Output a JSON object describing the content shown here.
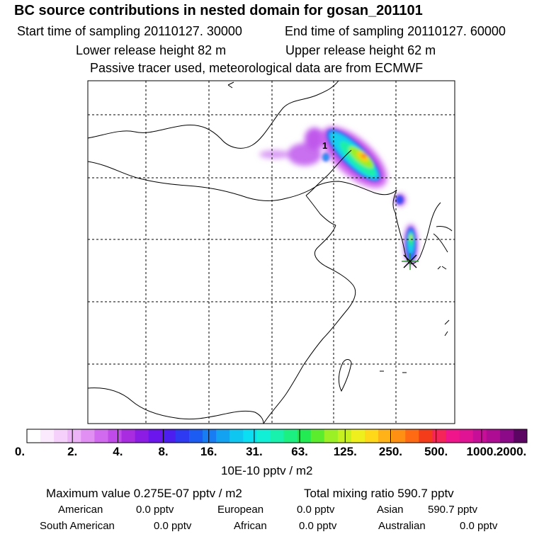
{
  "header": {
    "title": "BC  source contributions in nested domain for gosan_201101",
    "start_time": "Start time of sampling 20110127. 30000",
    "end_time": "End time of sampling 20110127. 60000",
    "lower_height": "Lower release height   82 m",
    "upper_height": "Upper release height   62 m",
    "tracer_note": "Passive tracer used, meteorological data are from ECMWF"
  },
  "map": {
    "marker_label": "1",
    "receptor_marker": "star-marker"
  },
  "colorbar": {
    "colors": [
      "#ffffff",
      "#fbe9fd",
      "#f5d0fa",
      "#edb3f7",
      "#e18ff2",
      "#d26aef",
      "#c04be9",
      "#a92ce0",
      "#8c1ce4",
      "#6a16ec",
      "#4c1ff0",
      "#2d3af2",
      "#1d5cf2",
      "#187df3",
      "#13a1f2",
      "#0fc6f0",
      "#0bddf2",
      "#11efd6",
      "#18f1ad",
      "#1bf080",
      "#23e953",
      "#5cec2e",
      "#9bf025",
      "#c7f020",
      "#eeef1c",
      "#ffd81a",
      "#ffb118",
      "#ff9014",
      "#ff6a12",
      "#f53c1a",
      "#f52459",
      "#f0158a",
      "#e01395",
      "#c70e98",
      "#ad0c93",
      "#8c0a88",
      "#5c0562"
    ],
    "ticks": [
      "0.",
      "2.",
      "4.",
      "8.",
      "16.",
      "31.",
      "63.",
      "125.",
      "250.",
      "500.",
      "1000.",
      "2000."
    ],
    "units": "10E-10 pptv / m2"
  },
  "stats": {
    "max_value": "Maximum value  0.275E-07 pptv / m2",
    "total_mixing": "Total mixing ratio      590.7 pptv",
    "regions_row1": [
      {
        "name": "American",
        "value": "0.0 pptv"
      },
      {
        "name": "European",
        "value": "0.0 pptv"
      },
      {
        "name": "Asian",
        "value": "590.7 pptv"
      }
    ],
    "regions_row2": [
      {
        "name": "South American",
        "value": "0.0 pptv"
      },
      {
        "name": "African",
        "value": "0.0 pptv"
      },
      {
        "name": "Australian",
        "value": "0.0 pptv"
      }
    ]
  }
}
